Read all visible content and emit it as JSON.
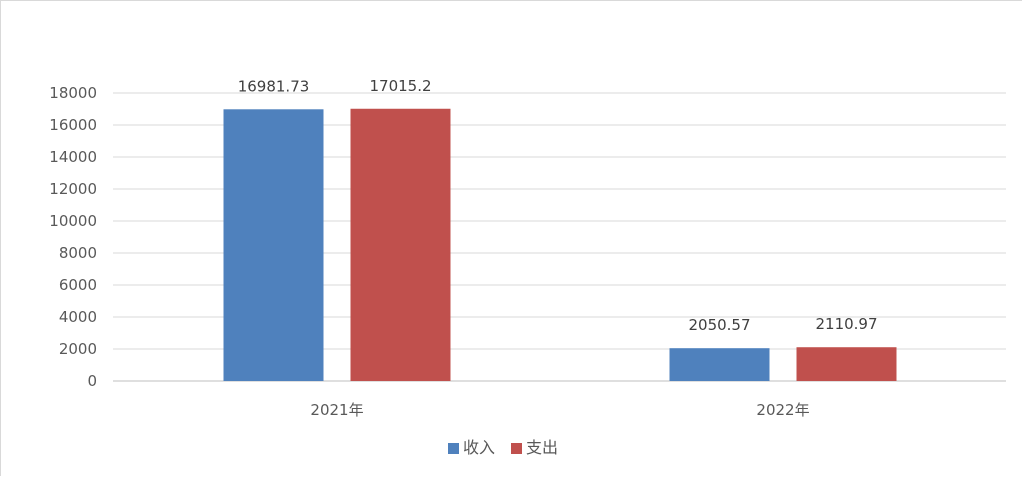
{
  "chart_data": {
    "type": "bar",
    "categories": [
      "2021年",
      "2022年"
    ],
    "series": [
      {
        "name": "收入",
        "values": [
          16981.73,
          2050.57
        ],
        "labels": [
          "16981.73",
          "2050.57"
        ],
        "color": "#4f81bd"
      },
      {
        "name": "支出",
        "values": [
          17015.2,
          2110.97
        ],
        "labels": [
          "17015.2",
          "2110.97"
        ],
        "color": "#c0504d"
      }
    ],
    "yticks": [
      0,
      2000,
      4000,
      6000,
      8000,
      10000,
      12000,
      14000,
      16000,
      18000
    ],
    "ylim": [
      0,
      18000
    ],
    "grid": true,
    "legend": "bottom-center",
    "title": "",
    "xlabel": "",
    "ylabel": ""
  }
}
